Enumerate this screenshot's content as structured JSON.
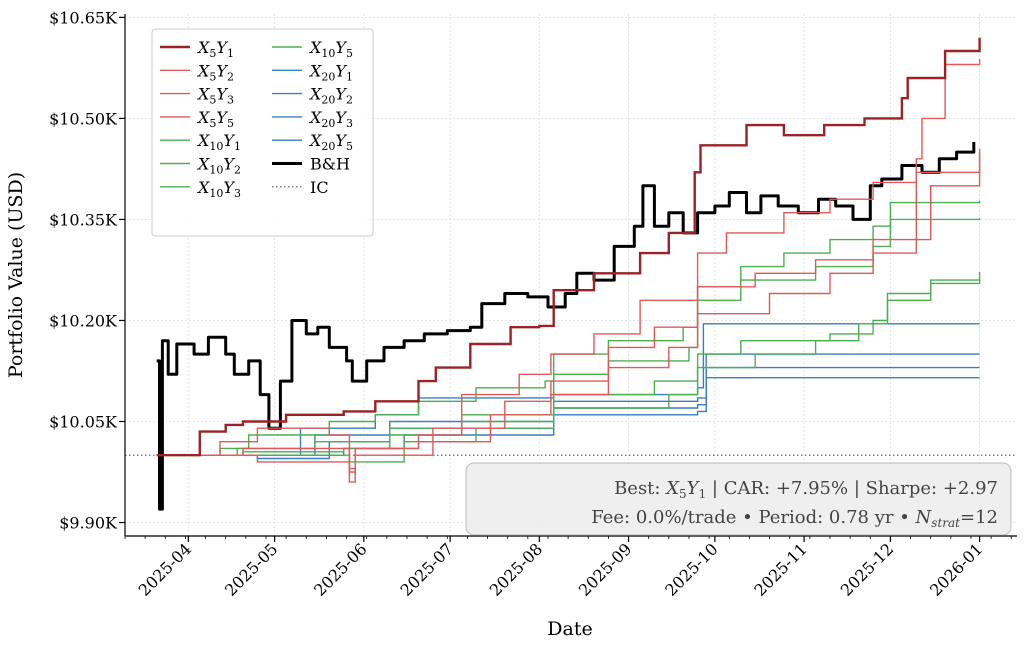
{
  "chart_data": {
    "type": "line",
    "title": "",
    "xlabel": "Date",
    "ylabel": "Portfolio Value (USD)",
    "ylim": [
      9880,
      10655
    ],
    "y_ticks": [
      {
        "value": 9900,
        "label": "$9.90K"
      },
      {
        "value": 10050,
        "label": "$10.05K"
      },
      {
        "value": 10200,
        "label": "$10.20K"
      },
      {
        "value": 10350,
        "label": "$10.35K"
      },
      {
        "value": 10500,
        "label": "$10.50K"
      },
      {
        "value": 10650,
        "label": "$10.65K"
      }
    ],
    "xlim": [
      "2025-03-10",
      "2026-01-14"
    ],
    "x_ticks": [
      "2025-04",
      "2025-05",
      "2025-06",
      "2025-07",
      "2025-08",
      "2025-09",
      "2025-10",
      "2025-11",
      "2025-12",
      "2026-01"
    ],
    "grid": true,
    "legend": {
      "position": "top-left",
      "columns": 2
    },
    "initial_capital": {
      "name": "IC",
      "value": 10000,
      "color": "#555555",
      "style": "dotted"
    },
    "series": [
      {
        "name": "X5Y1",
        "sub1": "5",
        "sub2": "1",
        "color": "#9b2226",
        "width": 2.4,
        "points": [
          [
            "2025-03-21",
            10000
          ],
          [
            "2025-04-04",
            10000
          ],
          [
            "2025-04-05",
            10035
          ],
          [
            "2025-04-14",
            10045
          ],
          [
            "2025-04-20",
            10050
          ],
          [
            "2025-05-05",
            10060
          ],
          [
            "2025-05-25",
            10065
          ],
          [
            "2025-06-05",
            10080
          ],
          [
            "2025-06-20",
            10110
          ],
          [
            "2025-06-26",
            10130
          ],
          [
            "2025-07-08",
            10165
          ],
          [
            "2025-07-22",
            10190
          ],
          [
            "2025-08-01",
            10192
          ],
          [
            "2025-08-06",
            10245
          ],
          [
            "2025-08-20",
            10270
          ],
          [
            "2025-09-05",
            10300
          ],
          [
            "2025-09-15",
            10330
          ],
          [
            "2025-09-24",
            10420
          ],
          [
            "2025-09-26",
            10460
          ],
          [
            "2025-10-08",
            10460
          ],
          [
            "2025-10-12",
            10490
          ],
          [
            "2025-10-25",
            10475
          ],
          [
            "2025-11-08",
            10490
          ],
          [
            "2025-11-22",
            10500
          ],
          [
            "2025-12-05",
            10530
          ],
          [
            "2025-12-07",
            10560
          ],
          [
            "2025-12-20",
            10600
          ],
          [
            "2026-01-01",
            10620
          ]
        ]
      },
      {
        "name": "X5Y2",
        "sub1": "5",
        "sub2": "2",
        "color": "#e05a5a",
        "width": 1.4,
        "points": [
          [
            "2025-03-21",
            10000
          ],
          [
            "2025-04-12",
            10020
          ],
          [
            "2025-04-25",
            10040
          ],
          [
            "2025-05-20",
            10030
          ],
          [
            "2025-05-27",
            9975
          ],
          [
            "2025-05-29",
            10010
          ],
          [
            "2025-06-20",
            10030
          ],
          [
            "2025-07-05",
            10090
          ],
          [
            "2025-07-25",
            10120
          ],
          [
            "2025-08-05",
            10150
          ],
          [
            "2025-08-20",
            10180
          ],
          [
            "2025-09-05",
            10230
          ],
          [
            "2025-09-25",
            10300
          ],
          [
            "2025-10-05",
            10330
          ],
          [
            "2025-10-25",
            10360
          ],
          [
            "2025-11-10",
            10380
          ],
          [
            "2025-11-25",
            10405
          ],
          [
            "2025-12-10",
            10440
          ],
          [
            "2025-12-12",
            10500
          ],
          [
            "2025-12-20",
            10580
          ],
          [
            "2026-01-01",
            10588
          ]
        ]
      },
      {
        "name": "X5Y3",
        "sub1": "5",
        "sub2": "3",
        "color": "#e05a5a",
        "width": 1.4,
        "points": [
          [
            "2025-03-21",
            10000
          ],
          [
            "2025-04-20",
            10010
          ],
          [
            "2025-05-27",
            9960
          ],
          [
            "2025-05-29",
            10000
          ],
          [
            "2025-06-25",
            10040
          ],
          [
            "2025-07-20",
            10080
          ],
          [
            "2025-08-05",
            10110
          ],
          [
            "2025-08-25",
            10160
          ],
          [
            "2025-09-10",
            10190
          ],
          [
            "2025-09-25",
            10250
          ],
          [
            "2025-10-15",
            10270
          ],
          [
            "2025-11-05",
            10290
          ],
          [
            "2025-11-25",
            10320
          ],
          [
            "2025-12-15",
            10400
          ],
          [
            "2026-01-01",
            10450
          ]
        ]
      },
      {
        "name": "X5Y5",
        "sub1": "5",
        "sub2": "5",
        "color": "#e05a5a",
        "width": 1.4,
        "points": [
          [
            "2025-03-21",
            10000
          ],
          [
            "2025-04-25",
            9990
          ],
          [
            "2025-05-27",
            9980
          ],
          [
            "2025-05-29",
            10010
          ],
          [
            "2025-06-20",
            10020
          ],
          [
            "2025-07-15",
            10060
          ],
          [
            "2025-08-05",
            10090
          ],
          [
            "2025-08-25",
            10130
          ],
          [
            "2025-09-15",
            10160
          ],
          [
            "2025-09-25",
            10210
          ],
          [
            "2025-10-20",
            10240
          ],
          [
            "2025-11-10",
            10270
          ],
          [
            "2025-11-25",
            10300
          ],
          [
            "2025-12-10",
            10420
          ],
          [
            "2026-01-01",
            10455
          ]
        ]
      },
      {
        "name": "X10Y1",
        "sub1": "10",
        "sub2": "1",
        "color": "#4caf50",
        "width": 1.4,
        "points": [
          [
            "2025-03-21",
            10000
          ],
          [
            "2025-04-12",
            10010
          ],
          [
            "2025-04-22",
            10030
          ],
          [
            "2025-05-10",
            10030
          ],
          [
            "2025-05-20",
            10050
          ],
          [
            "2025-06-05",
            10060
          ],
          [
            "2025-06-20",
            10080
          ],
          [
            "2025-07-10",
            10100
          ],
          [
            "2025-08-03",
            10110
          ],
          [
            "2025-08-06",
            10150
          ],
          [
            "2025-08-25",
            10170
          ],
          [
            "2025-09-20",
            10190
          ],
          [
            "2025-09-25",
            10250
          ],
          [
            "2025-10-10",
            10280
          ],
          [
            "2025-10-25",
            10300
          ],
          [
            "2025-11-10",
            10320
          ],
          [
            "2025-11-25",
            10340
          ],
          [
            "2025-12-01",
            10375
          ],
          [
            "2026-01-01",
            10378
          ]
        ]
      },
      {
        "name": "X10Y2",
        "sub1": "10",
        "sub2": "2",
        "color": "#4caf50",
        "width": 1.4,
        "points": [
          [
            "2025-03-21",
            10000
          ],
          [
            "2025-04-18",
            10010
          ],
          [
            "2025-05-15",
            10020
          ],
          [
            "2025-06-10",
            10040
          ],
          [
            "2025-07-05",
            10060
          ],
          [
            "2025-08-06",
            10120
          ],
          [
            "2025-08-25",
            10140
          ],
          [
            "2025-09-22",
            10160
          ],
          [
            "2025-09-25",
            10230
          ],
          [
            "2025-10-10",
            10260
          ],
          [
            "2025-11-05",
            10280
          ],
          [
            "2025-11-25",
            10310
          ],
          [
            "2025-12-01",
            10350
          ],
          [
            "2026-01-01",
            10352
          ]
        ]
      },
      {
        "name": "X10Y3",
        "sub1": "10",
        "sub2": "3",
        "color": "#4caf50",
        "width": 1.4,
        "points": [
          [
            "2025-03-21",
            10000
          ],
          [
            "2025-04-20",
            10005
          ],
          [
            "2025-05-25",
            10010
          ],
          [
            "2025-06-10",
            10030
          ],
          [
            "2025-07-05",
            10050
          ],
          [
            "2025-08-06",
            10090
          ],
          [
            "2025-09-10",
            10110
          ],
          [
            "2025-09-25",
            10150
          ],
          [
            "2025-10-10",
            10170
          ],
          [
            "2025-11-10",
            10180
          ],
          [
            "2025-11-25",
            10200
          ],
          [
            "2025-11-30",
            10240
          ],
          [
            "2025-12-15",
            10260
          ],
          [
            "2026-01-01",
            10272
          ]
        ]
      },
      {
        "name": "X10Y5",
        "sub1": "10",
        "sub2": "5",
        "color": "#4caf50",
        "width": 1.4,
        "points": [
          [
            "2025-03-21",
            10000
          ],
          [
            "2025-04-25",
            10000
          ],
          [
            "2025-05-27",
            9990
          ],
          [
            "2025-06-15",
            10020
          ],
          [
            "2025-07-10",
            10040
          ],
          [
            "2025-08-06",
            10070
          ],
          [
            "2025-09-15",
            10090
          ],
          [
            "2025-09-25",
            10130
          ],
          [
            "2025-10-15",
            10150
          ],
          [
            "2025-11-05",
            10170
          ],
          [
            "2025-11-20",
            10195
          ],
          [
            "2025-11-30",
            10230
          ],
          [
            "2025-12-15",
            10255
          ],
          [
            "2026-01-01",
            10262
          ]
        ]
      },
      {
        "name": "X20Y1",
        "sub1": "20",
        "sub2": "1",
        "color": "#3a7fbf",
        "width": 1.4,
        "points": [
          [
            "2025-03-21",
            10000
          ],
          [
            "2025-04-25",
            10000
          ],
          [
            "2025-05-10",
            10040
          ],
          [
            "2025-06-05",
            10060
          ],
          [
            "2025-06-20",
            10085
          ],
          [
            "2025-08-06",
            10090
          ],
          [
            "2025-09-25",
            10100
          ],
          [
            "2025-09-27",
            10195
          ],
          [
            "2026-01-01",
            10195
          ]
        ]
      },
      {
        "name": "X20Y2",
        "sub1": "20",
        "sub2": "2",
        "color": "#3a7fbf",
        "width": 1.4,
        "points": [
          [
            "2025-03-21",
            10000
          ],
          [
            "2025-04-25",
            10000
          ],
          [
            "2025-05-15",
            10030
          ],
          [
            "2025-06-10",
            10050
          ],
          [
            "2025-08-06",
            10080
          ],
          [
            "2025-09-25",
            10085
          ],
          [
            "2025-09-28",
            10150
          ],
          [
            "2026-01-01",
            10150
          ]
        ]
      },
      {
        "name": "X20Y3",
        "sub1": "20",
        "sub2": "3",
        "color": "#3a7fbf",
        "width": 1.4,
        "points": [
          [
            "2025-03-21",
            10000
          ],
          [
            "2025-04-25",
            9995
          ],
          [
            "2025-05-20",
            10020
          ],
          [
            "2025-06-10",
            10040
          ],
          [
            "2025-08-06",
            10070
          ],
          [
            "2025-09-25",
            10075
          ],
          [
            "2025-09-28",
            10130
          ],
          [
            "2026-01-01",
            10130
          ]
        ]
      },
      {
        "name": "X20Y5",
        "sub1": "20",
        "sub2": "5",
        "color": "#3a7fbf",
        "width": 1.4,
        "points": [
          [
            "2025-03-21",
            10000
          ],
          [
            "2025-04-25",
            10000
          ],
          [
            "2025-05-25",
            10010
          ],
          [
            "2025-06-15",
            10030
          ],
          [
            "2025-08-06",
            10060
          ],
          [
            "2025-09-25",
            10065
          ],
          [
            "2025-09-28",
            10115
          ],
          [
            "2026-01-01",
            10115
          ]
        ]
      },
      {
        "name": "B&H",
        "color": "#000000",
        "width": 3.0,
        "points": [
          [
            "2025-03-21",
            10140
          ],
          [
            "2025-03-22",
            9920
          ],
          [
            "2025-03-23",
            10170
          ],
          [
            "2025-03-25",
            10120
          ],
          [
            "2025-03-28",
            10165
          ],
          [
            "2025-04-03",
            10150
          ],
          [
            "2025-04-08",
            10175
          ],
          [
            "2025-04-14",
            10150
          ],
          [
            "2025-04-17",
            10120
          ],
          [
            "2025-04-22",
            10140
          ],
          [
            "2025-04-26",
            10090
          ],
          [
            "2025-04-29",
            10040
          ],
          [
            "2025-05-03",
            10110
          ],
          [
            "2025-05-07",
            10200
          ],
          [
            "2025-05-12",
            10180
          ],
          [
            "2025-05-16",
            10190
          ],
          [
            "2025-05-20",
            10160
          ],
          [
            "2025-05-26",
            10140
          ],
          [
            "2025-05-28",
            10110
          ],
          [
            "2025-06-02",
            10140
          ],
          [
            "2025-06-08",
            10160
          ],
          [
            "2025-06-15",
            10170
          ],
          [
            "2025-06-22",
            10180
          ],
          [
            "2025-06-30",
            10185
          ],
          [
            "2025-07-08",
            10190
          ],
          [
            "2025-07-12",
            10225
          ],
          [
            "2025-07-20",
            10240
          ],
          [
            "2025-07-28",
            10235
          ],
          [
            "2025-08-04",
            10220
          ],
          [
            "2025-08-10",
            10240
          ],
          [
            "2025-08-14",
            10270
          ],
          [
            "2025-08-20",
            10260
          ],
          [
            "2025-08-27",
            10310
          ],
          [
            "2025-09-03",
            10340
          ],
          [
            "2025-09-06",
            10400
          ],
          [
            "2025-09-10",
            10340
          ],
          [
            "2025-09-15",
            10360
          ],
          [
            "2025-09-20",
            10330
          ],
          [
            "2025-09-25",
            10360
          ],
          [
            "2025-10-01",
            10370
          ],
          [
            "2025-10-06",
            10390
          ],
          [
            "2025-10-12",
            10360
          ],
          [
            "2025-10-17",
            10385
          ],
          [
            "2025-10-23",
            10370
          ],
          [
            "2025-10-30",
            10360
          ],
          [
            "2025-11-06",
            10380
          ],
          [
            "2025-11-12",
            10370
          ],
          [
            "2025-11-18",
            10350
          ],
          [
            "2025-11-24",
            10400
          ],
          [
            "2025-11-28",
            10410
          ],
          [
            "2025-12-05",
            10430
          ],
          [
            "2025-12-12",
            10420
          ],
          [
            "2025-12-18",
            10440
          ],
          [
            "2025-12-24",
            10450
          ],
          [
            "2025-12-30",
            10465
          ]
        ]
      }
    ]
  },
  "stats_box": {
    "best_label": "Best:",
    "best_sub1": "5",
    "best_sub2": "1",
    "car": "CAR: +7.95%",
    "sharpe": "Sharpe: +2.97",
    "sep": "|",
    "fee": "Fee: 0.0%/trade",
    "period": "Period: 0.78 yr",
    "dot": "•",
    "nstrat_sub": "strat",
    "nstrat_value": "=12"
  }
}
